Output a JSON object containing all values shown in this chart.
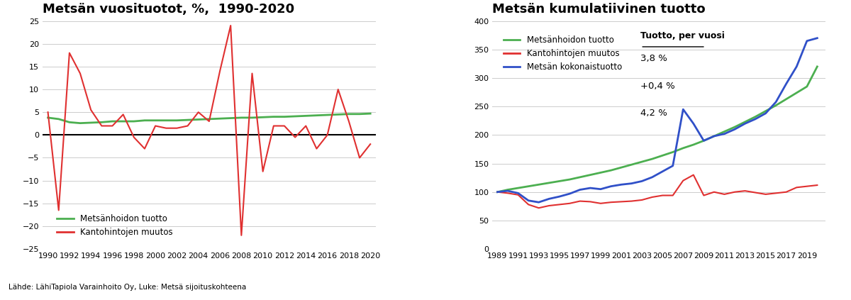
{
  "left_title": "Metsän vuosituotot, %,  1990-2020",
  "right_title": "Metsän kumulatiivinen tuotto",
  "source_text": "Lähde: LähiTapiola Varainhoito Oy, Luke: Metsä sijoituskohteena",
  "left_years": [
    1990,
    1991,
    1992,
    1993,
    1994,
    1995,
    1996,
    1997,
    1998,
    1999,
    2000,
    2001,
    2002,
    2003,
    2004,
    2005,
    2006,
    2007,
    2008,
    2009,
    2010,
    2011,
    2012,
    2013,
    2014,
    2015,
    2016,
    2017,
    2018,
    2019,
    2020
  ],
  "green_annual": [
    3.8,
    3.5,
    2.8,
    2.6,
    2.7,
    2.8,
    3.0,
    3.0,
    3.0,
    3.2,
    3.2,
    3.2,
    3.2,
    3.3,
    3.4,
    3.5,
    3.6,
    3.7,
    3.8,
    3.8,
    3.9,
    4.0,
    4.0,
    4.1,
    4.2,
    4.3,
    4.4,
    4.5,
    4.6,
    4.6,
    4.7
  ],
  "red_annual": [
    5.0,
    -16.5,
    18.0,
    13.5,
    5.5,
    2.0,
    2.0,
    4.5,
    -0.5,
    -3.0,
    2.0,
    1.5,
    1.5,
    2.0,
    5.0,
    3.0,
    14.0,
    24.0,
    -22.0,
    13.5,
    -8.0,
    2.0,
    2.0,
    -0.5,
    2.0,
    -3.0,
    0.0,
    10.0,
    3.0,
    -5.0,
    -2.0
  ],
  "right_years": [
    1989,
    1990,
    1991,
    1992,
    1993,
    1994,
    1995,
    1996,
    1997,
    1998,
    1999,
    2000,
    2001,
    2002,
    2003,
    2004,
    2005,
    2006,
    2007,
    2008,
    2009,
    2010,
    2011,
    2012,
    2013,
    2014,
    2015,
    2016,
    2017,
    2018,
    2019,
    2020
  ],
  "cum_green": [
    100,
    104,
    107,
    110,
    113,
    116,
    119,
    122,
    126,
    130,
    134,
    138,
    143,
    148,
    153,
    158,
    164,
    170,
    177,
    183,
    190,
    198,
    206,
    214,
    223,
    232,
    242,
    252,
    263,
    274,
    285,
    320
  ],
  "cum_red": [
    100,
    98,
    95,
    78,
    72,
    76,
    78,
    80,
    84,
    83,
    80,
    82,
    83,
    84,
    86,
    91,
    94,
    94,
    120,
    130,
    94,
    100,
    96,
    100,
    102,
    99,
    96,
    98,
    100,
    108,
    110,
    112
  ],
  "cum_blue": [
    100,
    102,
    98,
    85,
    82,
    88,
    92,
    97,
    104,
    107,
    105,
    110,
    113,
    115,
    119,
    126,
    136,
    146,
    245,
    220,
    190,
    198,
    202,
    210,
    220,
    228,
    238,
    258,
    290,
    320,
    365,
    370
  ],
  "left_ylim": [
    -25,
    25
  ],
  "left_yticks": [
    -25,
    -20,
    -15,
    -10,
    -5,
    0,
    5,
    10,
    15,
    20,
    25
  ],
  "right_ylim": [
    0,
    400
  ],
  "right_yticks": [
    0,
    50,
    100,
    150,
    200,
    250,
    300,
    350,
    400
  ],
  "color_green": "#4CAF50",
  "color_red": "#e03030",
  "color_blue": "#3050c8",
  "color_black": "#000000",
  "bg_color": "#ffffff",
  "legend_left_green": "Metsänhoidon tuotto",
  "legend_left_red": "Kantohintojen muutos",
  "legend_right_green": "Metsänhoidon tuotto",
  "legend_right_red": "Kantohintojen muutos",
  "legend_right_blue": "Metsän kokonaistuotto",
  "annotation_title": "Tuotto, per vuosi",
  "annotation_green_val": "3,8 %",
  "annotation_red_val": "+0,4 %",
  "annotation_blue_val": "4,2 %"
}
